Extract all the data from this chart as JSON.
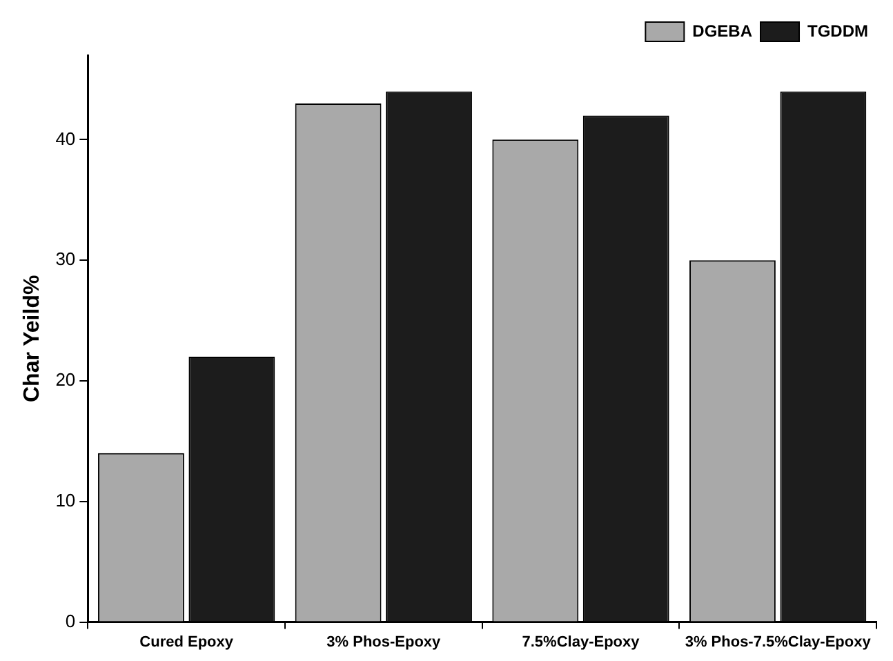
{
  "chart_data": {
    "type": "bar",
    "ylabel": "Char Yeild%",
    "categories": [
      "Cured Epoxy",
      "3% Phos-Epoxy",
      "7.5%Clay-Epoxy",
      "3% Phos-7.5%Clay-Epoxy"
    ],
    "series": [
      {
        "name": "DGEBA",
        "color": "#a9a9a9",
        "values": [
          14,
          43,
          40,
          30
        ]
      },
      {
        "name": "TGDDM",
        "color": "#1c1c1c",
        "values": [
          22,
          44,
          42,
          44
        ]
      }
    ],
    "ylim": [
      0,
      47
    ],
    "yticks": [
      0,
      10,
      20,
      30,
      40
    ],
    "grid": false,
    "legend": "top right"
  }
}
